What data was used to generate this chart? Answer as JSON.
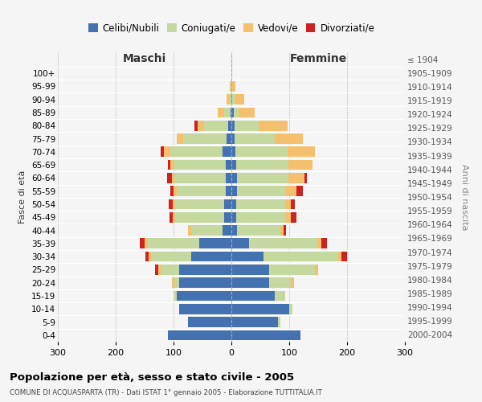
{
  "age_groups": [
    "100+",
    "95-99",
    "90-94",
    "85-89",
    "80-84",
    "75-79",
    "70-74",
    "65-69",
    "60-64",
    "55-59",
    "50-54",
    "45-49",
    "40-44",
    "35-39",
    "30-34",
    "25-29",
    "20-24",
    "15-19",
    "10-14",
    "5-9",
    "0-4"
  ],
  "birth_years": [
    "≤ 1904",
    "1905-1909",
    "1910-1914",
    "1915-1919",
    "1920-1924",
    "1925-1929",
    "1930-1934",
    "1935-1939",
    "1940-1944",
    "1945-1949",
    "1950-1954",
    "1955-1959",
    "1960-1964",
    "1965-1969",
    "1970-1974",
    "1975-1979",
    "1980-1984",
    "1985-1989",
    "1990-1994",
    "1995-1999",
    "2000-2004"
  ],
  "maschi": {
    "celibi": [
      0,
      0,
      0,
      2,
      5,
      8,
      15,
      10,
      10,
      10,
      12,
      12,
      15,
      55,
      70,
      90,
      90,
      95,
      90,
      75,
      110
    ],
    "coniugati": [
      0,
      1,
      3,
      10,
      42,
      75,
      90,
      90,
      88,
      85,
      85,
      85,
      55,
      90,
      68,
      32,
      8,
      3,
      0,
      0,
      0
    ],
    "vedovi": [
      0,
      2,
      5,
      12,
      12,
      12,
      12,
      5,
      5,
      5,
      5,
      5,
      5,
      5,
      5,
      5,
      5,
      0,
      0,
      0,
      0
    ],
    "divorziati": [
      0,
      0,
      0,
      0,
      5,
      0,
      5,
      5,
      8,
      5,
      7,
      5,
      0,
      8,
      5,
      5,
      0,
      0,
      0,
      0,
      0
    ]
  },
  "femmine": {
    "nubili": [
      0,
      0,
      2,
      4,
      5,
      5,
      7,
      8,
      10,
      10,
      8,
      8,
      10,
      30,
      55,
      65,
      65,
      75,
      100,
      80,
      120
    ],
    "coniugate": [
      0,
      2,
      5,
      8,
      42,
      70,
      90,
      90,
      88,
      85,
      85,
      85,
      75,
      120,
      130,
      80,
      38,
      18,
      5,
      5,
      0
    ],
    "vedove": [
      0,
      5,
      15,
      28,
      50,
      48,
      48,
      42,
      28,
      18,
      10,
      10,
      5,
      5,
      5,
      5,
      5,
      0,
      0,
      0,
      0
    ],
    "divorziate": [
      0,
      0,
      0,
      0,
      0,
      0,
      0,
      0,
      5,
      10,
      7,
      10,
      5,
      10,
      10,
      0,
      0,
      0,
      0,
      0,
      0
    ]
  },
  "colors": {
    "celibi": "#4472b0",
    "coniugati": "#c5d8a0",
    "vedovi": "#f5c06e",
    "divorziati": "#cc2222"
  },
  "xlim": 300,
  "title": "Popolazione per età, sesso e stato civile - 2005",
  "subtitle": "COMUNE DI ACQUASPARTA (TR) - Dati ISTAT 1° gennaio 2005 - Elaborazione TUTTITALIA.IT",
  "ylabel_left": "Fasce di età",
  "ylabel_right": "Anni di nascita",
  "xlabel_left": "Maschi",
  "xlabel_right": "Femmine",
  "legend_labels": [
    "Celibi/Nubili",
    "Coniugati/e",
    "Vedovi/e",
    "Divorziati/e"
  ],
  "bg_color": "#f5f5f5",
  "grid_color": "#cccccc",
  "header_color": "#333333"
}
